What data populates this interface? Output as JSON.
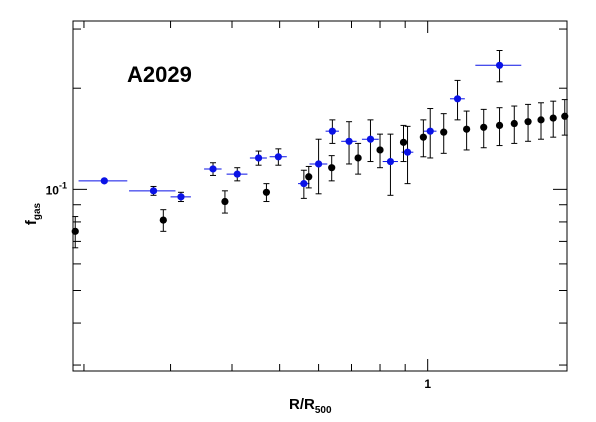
{
  "chart_data": {
    "type": "scatter",
    "title": "A2029",
    "xlabel": {
      "main": "R/R",
      "sub": "500"
    },
    "ylabel": {
      "main": "f",
      "sub": "gas"
    },
    "x_scale": "log",
    "y_scale": "log",
    "xlim": [
      0.19,
      1.92
    ],
    "ylim": [
      0.0288,
      0.317
    ],
    "x_tick_labels": [
      {
        "value": 1.0,
        "label": "1"
      }
    ],
    "y_tick_labels": [
      {
        "value": 0.1,
        "label": "10^-1"
      }
    ],
    "grid": false,
    "legend": "none",
    "series": [
      {
        "color": "#0a12e6",
        "points": [
          {
            "x": 0.22,
            "y": 0.106,
            "xerr": [
              0.025,
              0.025
            ],
            "yerr": [
              0.0,
              0.0
            ]
          },
          {
            "x": 0.277,
            "y": 0.099,
            "xerr": [
              0.03,
              0.03
            ],
            "yerr": [
              0.003,
              0.003
            ]
          },
          {
            "x": 0.315,
            "y": 0.095,
            "xerr": [
              0.015,
              0.015
            ],
            "yerr": [
              0.003,
              0.003
            ]
          },
          {
            "x": 0.366,
            "y": 0.115,
            "xerr": [
              0.015,
              0.015
            ],
            "yerr": [
              0.005,
              0.005
            ]
          },
          {
            "x": 0.41,
            "y": 0.111,
            "xerr": [
              0.02,
              0.02
            ],
            "yerr": [
              0.005,
              0.005
            ]
          },
          {
            "x": 0.453,
            "y": 0.124,
            "xerr": [
              0.018,
              0.018
            ],
            "yerr": [
              0.006,
              0.006
            ]
          },
          {
            "x": 0.497,
            "y": 0.125,
            "xerr": [
              0.02,
              0.02
            ],
            "yerr": [
              0.007,
              0.007
            ]
          },
          {
            "x": 0.56,
            "y": 0.104,
            "xerr": [
              0.015,
              0.015
            ],
            "yerr": [
              0.01,
              0.01
            ]
          },
          {
            "x": 0.6,
            "y": 0.119,
            "xerr": [
              0.025,
              0.025
            ],
            "yerr": [
              0.022,
              0.022
            ]
          },
          {
            "x": 0.64,
            "y": 0.149,
            "xerr": [
              0.02,
              0.02
            ],
            "yerr": [
              0.012,
              0.012
            ]
          },
          {
            "x": 0.692,
            "y": 0.139,
            "xerr": [
              0.025,
              0.025
            ],
            "yerr": [
              0.02,
              0.02
            ]
          },
          {
            "x": 0.765,
            "y": 0.141,
            "xerr": [
              0.03,
              0.03
            ],
            "yerr": [
              0.02,
              0.02
            ]
          },
          {
            "x": 0.84,
            "y": 0.121,
            "xerr": [
              0.03,
              0.03
            ],
            "yerr": [
              0.025,
              0.025
            ]
          },
          {
            "x": 0.91,
            "y": 0.129,
            "xerr": [
              0.025,
              0.025
            ],
            "yerr": [
              0.025,
              0.025
            ]
          },
          {
            "x": 1.012,
            "y": 0.149,
            "xerr": [
              0.03,
              0.03
            ],
            "yerr": [
              0.025,
              0.025
            ]
          },
          {
            "x": 1.15,
            "y": 0.186,
            "xerr": [
              0.04,
              0.04
            ],
            "yerr": [
              0.025,
              0.025
            ]
          },
          {
            "x": 1.4,
            "y": 0.234,
            "xerr": [
              0.15,
              0.15
            ],
            "yerr": [
              0.025,
              0.025
            ]
          }
        ]
      },
      {
        "color": "#000000",
        "points": [
          {
            "x": 0.192,
            "y": 0.075,
            "yerr": [
              0.008,
              0.008
            ]
          },
          {
            "x": 0.29,
            "y": 0.081,
            "yerr": [
              0.006,
              0.006
            ]
          },
          {
            "x": 0.387,
            "y": 0.092,
            "yerr": [
              0.007,
              0.007
            ]
          },
          {
            "x": 0.47,
            "y": 0.098,
            "yerr": [
              0.006,
              0.006
            ]
          },
          {
            "x": 0.573,
            "y": 0.109,
            "yerr": [
              0.008,
              0.008
            ]
          },
          {
            "x": 0.638,
            "y": 0.116,
            "yerr": [
              0.01,
              0.01
            ]
          },
          {
            "x": 0.722,
            "y": 0.124,
            "yerr": [
              0.013,
              0.013
            ]
          },
          {
            "x": 0.8,
            "y": 0.131,
            "yerr": [
              0.015,
              0.015
            ]
          },
          {
            "x": 0.893,
            "y": 0.138,
            "yerr": [
              0.017,
              0.017
            ]
          },
          {
            "x": 0.98,
            "y": 0.143,
            "yerr": [
              0.018,
              0.018
            ]
          },
          {
            "x": 1.078,
            "y": 0.148,
            "yerr": [
              0.02,
              0.02
            ]
          },
          {
            "x": 1.2,
            "y": 0.151,
            "yerr": [
              0.02,
              0.02
            ]
          },
          {
            "x": 1.3,
            "y": 0.153,
            "yerr": [
              0.02,
              0.02
            ]
          },
          {
            "x": 1.4,
            "y": 0.155,
            "yerr": [
              0.02,
              0.02
            ]
          },
          {
            "x": 1.5,
            "y": 0.157,
            "yerr": [
              0.02,
              0.02
            ]
          },
          {
            "x": 1.6,
            "y": 0.159,
            "yerr": [
              0.02,
              0.02
            ]
          },
          {
            "x": 1.7,
            "y": 0.161,
            "yerr": [
              0.02,
              0.02
            ]
          },
          {
            "x": 1.8,
            "y": 0.163,
            "yerr": [
              0.02,
              0.02
            ]
          },
          {
            "x": 1.9,
            "y": 0.165,
            "yerr": [
              0.02,
              0.02
            ]
          }
        ]
      }
    ]
  }
}
